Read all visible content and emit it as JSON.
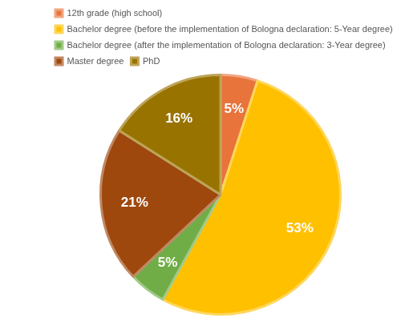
{
  "chart_data": {
    "type": "pie",
    "categories": [
      "12th grade (high school)",
      "Bachelor degree (before the implementation of Bologna declaration: 5-Year degree)",
      "Bachelor degree (after the implementation of Bologna declaration: 3-Year degree)",
      "Master degree",
      "PhD"
    ],
    "values": [
      5,
      53,
      5,
      21,
      16
    ],
    "value_labels": [
      "5%",
      "53%",
      "5%",
      "21%",
      "16%"
    ],
    "colors": [
      "#e8743b",
      "#ffc000",
      "#70ad47",
      "#9e480e",
      "#997300"
    ],
    "legend": "top-left",
    "data_labels": true
  }
}
